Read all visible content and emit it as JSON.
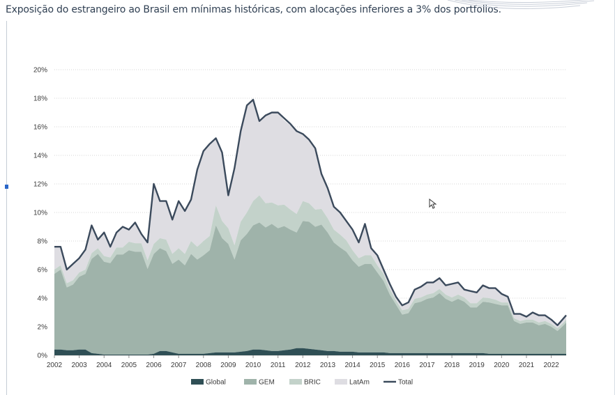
{
  "header": {
    "subtitle": "Exposição do estrangeiro ao Brasil em mínimas históricas, com alocações inferiores a 3% dos portfolios."
  },
  "colors": {
    "global": "#2f4f55",
    "gem": "#9fb3aa",
    "bric": "#c3d2ca",
    "latam": "#dedde2",
    "total": "#3b4a5c",
    "grid": "#d4d4d4"
  },
  "chart_data": {
    "type": "area",
    "stacked": true,
    "x_labels": [
      "2002",
      "2003",
      "2004",
      "2005",
      "2006",
      "2007",
      "2008",
      "2009",
      "2010",
      "2011",
      "2012",
      "2013",
      "2014",
      "2015",
      "2016",
      "2017",
      "2018",
      "2019",
      "2020",
      "2021",
      "2022"
    ],
    "xlim": [
      2002.0,
      2022.6
    ],
    "ylim": [
      0,
      20
    ],
    "y_ticks": [
      "0%",
      "2%",
      "4%",
      "6%",
      "8%",
      "10%",
      "12%",
      "14%",
      "16%",
      "18%",
      "20%"
    ],
    "grid": "horizontal-dotted",
    "legend_position": "bottom",
    "x": [
      2002.0,
      2002.25,
      2002.5,
      2002.75,
      2003.0,
      2003.25,
      2003.5,
      2003.75,
      2004.0,
      2004.25,
      2004.5,
      2004.75,
      2005.0,
      2005.25,
      2005.5,
      2005.75,
      2006.0,
      2006.25,
      2006.5,
      2006.75,
      2007.0,
      2007.25,
      2007.5,
      2007.75,
      2008.0,
      2008.25,
      2008.5,
      2008.75,
      2009.0,
      2009.25,
      2009.5,
      2009.75,
      2010.0,
      2010.25,
      2010.5,
      2010.75,
      2011.0,
      2011.25,
      2011.5,
      2011.75,
      2012.0,
      2012.25,
      2012.5,
      2012.75,
      2013.0,
      2013.25,
      2013.5,
      2013.75,
      2014.0,
      2014.25,
      2014.5,
      2014.75,
      2015.0,
      2015.25,
      2015.5,
      2015.75,
      2016.0,
      2016.25,
      2016.5,
      2016.75,
      2017.0,
      2017.25,
      2017.5,
      2017.75,
      2018.0,
      2018.25,
      2018.5,
      2018.75,
      2019.0,
      2019.25,
      2019.5,
      2019.75,
      2020.0,
      2020.25,
      2020.5,
      2020.75,
      2021.0,
      2021.25,
      2021.5,
      2021.75,
      2022.0,
      2022.25,
      2022.5,
      2022.6
    ],
    "series": [
      {
        "name": "Global",
        "values": [
          0.4,
          0.4,
          0.35,
          0.35,
          0.4,
          0.4,
          0.15,
          0.1,
          0.05,
          0.05,
          0.05,
          0.05,
          0.05,
          0.05,
          0.05,
          0.05,
          0.1,
          0.3,
          0.3,
          0.2,
          0.1,
          0.1,
          0.1,
          0.1,
          0.1,
          0.15,
          0.2,
          0.2,
          0.2,
          0.2,
          0.25,
          0.3,
          0.4,
          0.4,
          0.35,
          0.3,
          0.3,
          0.35,
          0.4,
          0.5,
          0.5,
          0.45,
          0.4,
          0.35,
          0.3,
          0.3,
          0.25,
          0.25,
          0.25,
          0.2,
          0.2,
          0.2,
          0.2,
          0.2,
          0.15,
          0.15,
          0.15,
          0.15,
          0.15,
          0.15,
          0.15,
          0.15,
          0.15,
          0.15,
          0.15,
          0.15,
          0.15,
          0.15,
          0.15,
          0.15,
          0.1,
          0.1,
          0.1,
          0.1,
          0.1,
          0.1,
          0.1,
          0.1,
          0.1,
          0.1,
          0.1,
          0.1,
          0.1,
          0.1
        ]
      },
      {
        "name": "GEM",
        "values": [
          5.3,
          5.6,
          4.4,
          4.6,
          5.1,
          5.3,
          6.6,
          7.0,
          6.5,
          6.4,
          7.0,
          7.0,
          7.3,
          7.2,
          7.2,
          6.0,
          7.0,
          7.2,
          7.0,
          6.2,
          6.6,
          6.2,
          7.0,
          6.6,
          6.9,
          7.2,
          8.9,
          8.0,
          7.6,
          6.5,
          7.8,
          8.2,
          8.7,
          8.9,
          8.6,
          8.9,
          8.6,
          8.7,
          8.4,
          8.1,
          8.9,
          8.9,
          8.6,
          8.8,
          8.3,
          7.6,
          7.3,
          7.0,
          6.4,
          6.0,
          6.2,
          6.2,
          5.6,
          5.0,
          4.1,
          3.4,
          2.7,
          2.8,
          3.5,
          3.6,
          3.8,
          3.9,
          4.2,
          3.8,
          3.6,
          3.8,
          3.6,
          3.2,
          3.2,
          3.6,
          3.6,
          3.5,
          3.4,
          3.4,
          2.3,
          2.1,
          2.2,
          2.2,
          2.0,
          2.1,
          1.9,
          1.6,
          2.0,
          2.2
        ]
      },
      {
        "name": "BRIC",
        "values": [
          0.3,
          0.3,
          0.3,
          0.3,
          0.3,
          0.3,
          0.4,
          0.4,
          0.4,
          0.4,
          0.5,
          0.5,
          0.6,
          0.6,
          0.6,
          0.6,
          0.7,
          0.7,
          0.8,
          0.7,
          0.8,
          0.8,
          0.9,
          0.9,
          1.0,
          1.0,
          1.4,
          1.2,
          1.1,
          1.0,
          1.3,
          1.5,
          1.7,
          1.9,
          1.7,
          1.5,
          1.6,
          1.5,
          1.4,
          1.3,
          1.4,
          1.3,
          1.2,
          1.1,
          1.0,
          0.9,
          0.9,
          0.8,
          0.7,
          0.6,
          0.6,
          0.6,
          0.5,
          0.5,
          0.4,
          0.3,
          0.3,
          0.3,
          0.3,
          0.3,
          0.3,
          0.3,
          0.3,
          0.3,
          0.3,
          0.3,
          0.3,
          0.3,
          0.3,
          0.3,
          0.3,
          0.3,
          0.2,
          0.2,
          0.2,
          0.2,
          0.2,
          0.2,
          0.2,
          0.2,
          0.2,
          0.2,
          0.2,
          0.2
        ]
      },
      {
        "name": "LatAm",
        "values": [
          1.6,
          1.3,
          1.0,
          1.1,
          1.0,
          1.4,
          1.9,
          0.6,
          1.7,
          0.8,
          1.1,
          1.5,
          0.9,
          1.5,
          0.7,
          1.3,
          4.2,
          2.6,
          2.7,
          2.4,
          3.3,
          3.0,
          2.9,
          5.5,
          6.3,
          6.4,
          4.7,
          4.8,
          2.3,
          5.4,
          6.4,
          7.5,
          7.2,
          5.2,
          6.1,
          6.3,
          6.5,
          5.9,
          5.9,
          5.8,
          4.7,
          4.5,
          4.3,
          2.5,
          2.1,
          1.6,
          1.6,
          1.4,
          1.5,
          1.1,
          2.2,
          0.6,
          0.7,
          0.3,
          0.4,
          0.3,
          0.4,
          0.4,
          0.7,
          0.8,
          0.9,
          0.8,
          0.8,
          0.7,
          0.9,
          0.9,
          0.6,
          0.8,
          0.8,
          0.9,
          0.7,
          0.8,
          0.6,
          0.4,
          0.3,
          0.5,
          0.2,
          0.5,
          0.5,
          0.4,
          0.3,
          0.2,
          0.3,
          0.3
        ]
      },
      {
        "name": "Total",
        "values": [
          7.6,
          7.6,
          6.0,
          6.4,
          6.8,
          7.4,
          9.1,
          8.1,
          8.6,
          7.6,
          8.6,
          9.0,
          8.8,
          9.3,
          8.5,
          7.9,
          12.0,
          10.8,
          10.8,
          9.5,
          10.8,
          10.1,
          10.9,
          13.0,
          14.3,
          14.8,
          15.2,
          14.2,
          11.2,
          13.1,
          15.7,
          17.5,
          17.9,
          16.4,
          16.8,
          17.0,
          17.0,
          16.6,
          16.2,
          15.7,
          15.5,
          15.1,
          14.5,
          12.7,
          11.7,
          10.4,
          10.0,
          9.4,
          8.8,
          7.9,
          9.2,
          7.5,
          7.0,
          6.0,
          5.0,
          4.1,
          3.5,
          3.7,
          4.6,
          4.8,
          5.1,
          5.1,
          5.4,
          4.9,
          5.0,
          5.1,
          4.6,
          4.5,
          4.4,
          4.9,
          4.7,
          4.7,
          4.3,
          4.1,
          2.9,
          2.9,
          2.7,
          3.0,
          2.8,
          2.8,
          2.5,
          2.1,
          2.6,
          2.8
        ]
      }
    ]
  }
}
